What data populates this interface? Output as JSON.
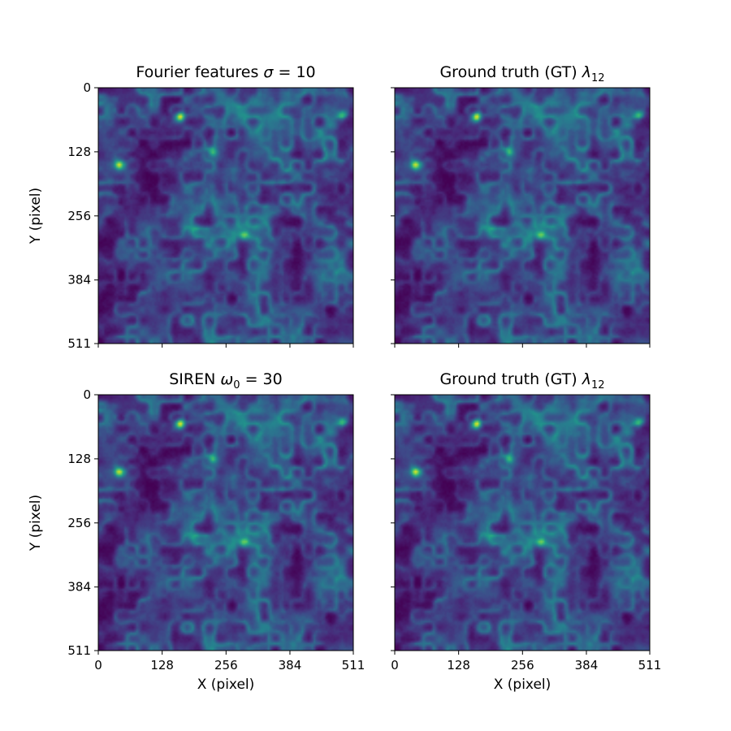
{
  "chart_data": [
    {
      "type": "heatmap",
      "title": "Fourier features σ = 10",
      "title_main": "Fourier features ",
      "title_symbol": "σ",
      "title_sub": "",
      "title_rest": " = 10",
      "xlabel": "",
      "ylabel": "Y (pixel)",
      "xlim": [
        0,
        511
      ],
      "ylim": [
        511,
        0
      ],
      "xticks": [],
      "yticks": [
        "0",
        "128",
        "256",
        "384",
        "511"
      ],
      "colormap": "viridis"
    },
    {
      "type": "heatmap",
      "title": "Ground truth (GT) λ12",
      "title_main": "Ground truth (GT) ",
      "title_symbol": "λ",
      "title_sub": "12",
      "title_rest": "",
      "xlabel": "",
      "ylabel": "",
      "xlim": [
        0,
        511
      ],
      "ylim": [
        511,
        0
      ],
      "xticks": [],
      "yticks": [],
      "colormap": "viridis"
    },
    {
      "type": "heatmap",
      "title": "SIREN ω0 = 30",
      "title_main": "SIREN ",
      "title_symbol": "ω",
      "title_sub": "0",
      "title_rest": " = 30",
      "xlabel": "X (pixel)",
      "ylabel": "Y (pixel)",
      "xlim": [
        0,
        511
      ],
      "ylim": [
        511,
        0
      ],
      "xticks": [
        "0",
        "128",
        "256",
        "384",
        "511"
      ],
      "yticks": [
        "0",
        "128",
        "256",
        "384",
        "511"
      ],
      "colormap": "viridis"
    },
    {
      "type": "heatmap",
      "title": "Ground truth (GT) λ12",
      "title_main": "Ground truth (GT) ",
      "title_symbol": "λ",
      "title_sub": "12",
      "title_rest": "",
      "xlabel": "X (pixel)",
      "ylabel": "",
      "xlim": [
        0,
        511
      ],
      "ylim": [
        511,
        0
      ],
      "xticks": [
        "0",
        "128",
        "256",
        "384",
        "511"
      ],
      "yticks": [],
      "colormap": "viridis"
    }
  ],
  "tick_values": [
    0,
    128,
    256,
    384,
    511
  ],
  "colors": {
    "viridis_dark": "#440154",
    "viridis_blue": "#3b528b",
    "viridis_teal": "#21918c",
    "viridis_green": "#5ec962",
    "viridis_yellow": "#fde725"
  }
}
